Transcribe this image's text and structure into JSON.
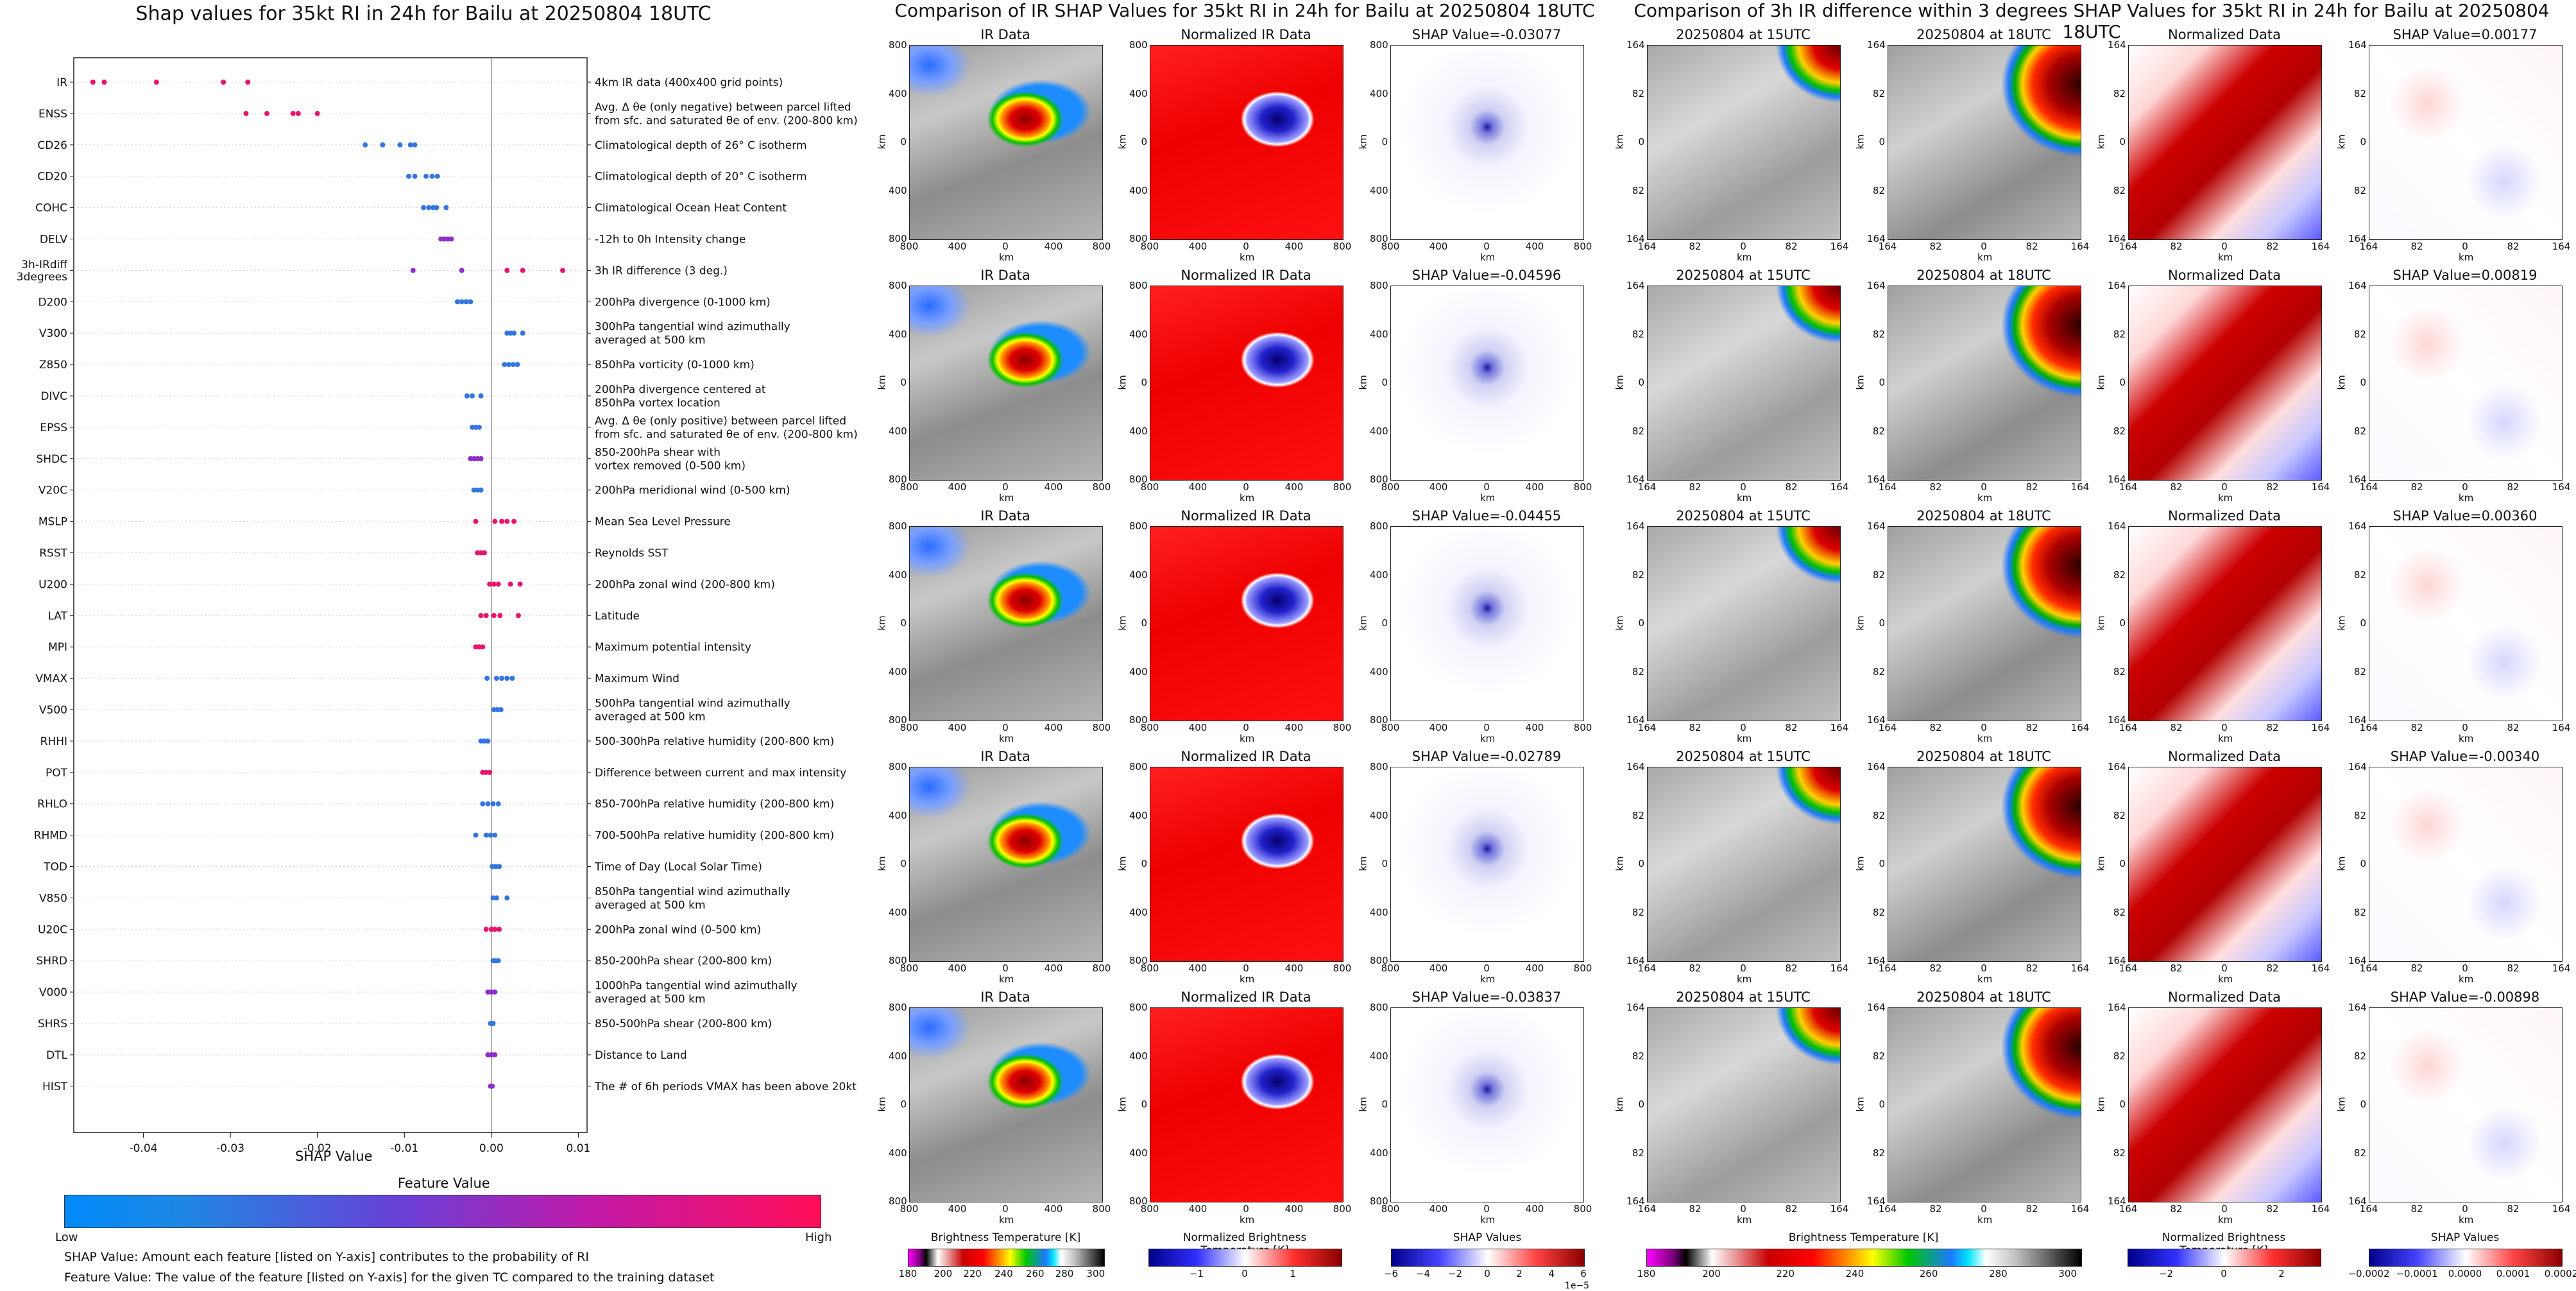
{
  "shap_panel": {
    "title": "Shap values for 35kt RI in 24h for Bailu at 20250804 18UTC",
    "xlabel": "SHAP Value",
    "xticks": [
      "-0.04",
      "-0.03",
      "-0.02",
      "-0.01",
      "0.00",
      "0.01"
    ],
    "colorbar_title": "Feature Value",
    "colorbar_low": "Low",
    "colorbar_high": "High",
    "note1": "SHAP Value: Amount each feature [listed on Y-axis] contributes to the probability of RI",
    "note2": "Feature Value: The value of the feature [listed on Y-axis] for the given TC compared to the training dataset"
  },
  "ir_panel": {
    "title": "Comparison of IR SHAP Values for 35kt RI in 24h for Bailu at 20250804 18UTC",
    "col_ir": "IR Data",
    "col_norm": "Normalized IR Data",
    "shap_titles": [
      "SHAP Value=-0.03077",
      "SHAP Value=-0.04596",
      "SHAP Value=-0.04455",
      "SHAP Value=-0.02789",
      "SHAP Value=-0.03837"
    ],
    "axis_label": "km",
    "ticks": [
      "800",
      "400",
      "0",
      "400",
      "800"
    ],
    "cb1_label": "Brightness Temperature [K]",
    "cb1_ticks": [
      "180",
      "200",
      "220",
      "240",
      "260",
      "280",
      "300"
    ],
    "cb2_label": "Normalized Brightness Temperature [K]",
    "cb2_ticks": [
      "−1",
      "0",
      "1"
    ],
    "cb3_label": "SHAP Values",
    "cb3_ticks": [
      "−6",
      "−4",
      "−2",
      "0",
      "2",
      "4",
      "6"
    ],
    "cb3_exp": "1e−5"
  },
  "diff_panel": {
    "title": "Comparison of 3h IR difference within 3 degrees SHAP Values for 35kt RI in 24h for Bailu at 20250804 18UTC",
    "col_t1": "20250804 at 15UTC",
    "col_t2": "20250804 at 18UTC",
    "col_norm": "Normalized Data",
    "shap_titles": [
      "SHAP Value=0.00177",
      "SHAP Value=0.00819",
      "SHAP Value=0.00360",
      "SHAP Value=-0.00340",
      "SHAP Value=-0.00898"
    ],
    "axis_label": "km",
    "ticks": [
      "164",
      "82",
      "0",
      "82",
      "164"
    ],
    "cb1_label": "Brightness Temperature [K]",
    "cb1_ticks": [
      "180",
      "200",
      "220",
      "240",
      "260",
      "280",
      "300"
    ],
    "cb2_label": "Normalized Brightness Temperature [K]",
    "cb2_ticks": [
      "−2",
      "0",
      "2"
    ],
    "cb3_label": "SHAP Values",
    "cb3_ticks": [
      "−0.0002",
      "−0.0001",
      "0.0000",
      "0.0001",
      "0.0002"
    ]
  },
  "colors": {
    "feature_low": "#1E88E5",
    "feature_high": "#FF0D57",
    "shap_neg": "#1a1aff",
    "shap_pos": "#ff1a1a"
  },
  "chart_data": {
    "type": "scatter",
    "title": "Shap values for 35kt RI in 24h for Bailu at 20250804 18UTC",
    "xlabel": "SHAP Value",
    "xlim": [
      -0.048,
      0.011
    ],
    "features": [
      {
        "name": "IR",
        "desc": "4km IR data (400x400 grid points)",
        "points": [
          [
            -0.0458,
            0.9
          ],
          [
            -0.0445,
            0.9
          ],
          [
            -0.0385,
            0.9
          ],
          [
            -0.0308,
            0.9
          ],
          [
            -0.028,
            0.9
          ]
        ]
      },
      {
        "name": "ENSS",
        "desc": "Avg. Δ θe (only negative) between parcel lifted\nfrom sfc. and saturated θe of env. (200-800 km)",
        "points": [
          [
            -0.0282,
            0.9
          ],
          [
            -0.0258,
            0.9
          ],
          [
            -0.0228,
            0.9
          ],
          [
            -0.0222,
            0.9
          ],
          [
            -0.02,
            0.9
          ]
        ]
      },
      {
        "name": "CD26",
        "desc": "Climatological depth of 26° C isotherm",
        "points": [
          [
            -0.0145,
            0.1
          ],
          [
            -0.0125,
            0.1
          ],
          [
            -0.0105,
            0.1
          ],
          [
            -0.0093,
            0.1
          ],
          [
            -0.0088,
            0.1
          ]
        ]
      },
      {
        "name": "CD20",
        "desc": "Climatological depth of 20° C isotherm",
        "points": [
          [
            -0.0095,
            0.1
          ],
          [
            -0.0088,
            0.1
          ],
          [
            -0.0075,
            0.1
          ],
          [
            -0.0068,
            0.1
          ],
          [
            -0.0062,
            0.1
          ]
        ]
      },
      {
        "name": "COHC",
        "desc": "Climatological Ocean Heat Content",
        "points": [
          [
            -0.0078,
            0.1
          ],
          [
            -0.0072,
            0.1
          ],
          [
            -0.0067,
            0.1
          ],
          [
            -0.0063,
            0.1
          ],
          [
            -0.0052,
            0.1
          ]
        ]
      },
      {
        "name": "DELV",
        "desc": "-12h to 0h Intensity change",
        "points": [
          [
            -0.0058,
            0.5
          ],
          [
            -0.0054,
            0.5
          ],
          [
            -0.005,
            0.5
          ],
          [
            -0.0046,
            0.5
          ]
        ]
      },
      {
        "name": "3h-IRdiff\n3degrees",
        "desc": "3h IR difference (3 deg.)",
        "points": [
          [
            -0.009,
            0.5
          ],
          [
            -0.0034,
            0.5
          ],
          [
            0.0018,
            0.9
          ],
          [
            0.0036,
            0.9
          ],
          [
            0.0082,
            0.9
          ]
        ]
      },
      {
        "name": "D200",
        "desc": "200hPa divergence (0-1000 km)",
        "points": [
          [
            -0.0039,
            0.1
          ],
          [
            -0.0034,
            0.1
          ],
          [
            -0.0029,
            0.1
          ],
          [
            -0.0024,
            0.1
          ]
        ]
      },
      {
        "name": "V300",
        "desc": "300hPa tangential wind azimuthally\naveraged at 500 km",
        "points": [
          [
            0.0018,
            0.1
          ],
          [
            0.0022,
            0.1
          ],
          [
            0.0026,
            0.1
          ],
          [
            0.0036,
            0.1
          ]
        ]
      },
      {
        "name": "Z850",
        "desc": "850hPa vorticity (0-1000 km)",
        "points": [
          [
            0.0015,
            0.1
          ],
          [
            0.002,
            0.1
          ],
          [
            0.0025,
            0.1
          ],
          [
            0.003,
            0.1
          ]
        ]
      },
      {
        "name": "DIVC",
        "desc": "200hPa divergence centered at\n850hPa vortex location",
        "points": [
          [
            -0.0028,
            0.1
          ],
          [
            -0.0022,
            0.1
          ],
          [
            -0.0012,
            0.1
          ]
        ]
      },
      {
        "name": "EPSS",
        "desc": "Avg. Δ θe (only positive) between parcel lifted\nfrom sfc. and saturated θe of env. (200-800 km)",
        "points": [
          [
            -0.0022,
            0.1
          ],
          [
            -0.0018,
            0.1
          ],
          [
            -0.0014,
            0.1
          ]
        ]
      },
      {
        "name": "SHDC",
        "desc": "850-200hPa shear with\nvortex removed (0-500 km)",
        "points": [
          [
            -0.0024,
            0.5
          ],
          [
            -0.002,
            0.5
          ],
          [
            -0.0016,
            0.5
          ],
          [
            -0.0012,
            0.5
          ]
        ]
      },
      {
        "name": "V20C",
        "desc": "200hPa meridional wind (0-500 km)",
        "points": [
          [
            -0.002,
            0.1
          ],
          [
            -0.0016,
            0.1
          ],
          [
            -0.0012,
            0.1
          ]
        ]
      },
      {
        "name": "MSLP",
        "desc": "Mean Sea Level Pressure",
        "points": [
          [
            -0.0018,
            0.9
          ],
          [
            0.0004,
            0.9
          ],
          [
            0.0012,
            0.9
          ],
          [
            0.0018,
            0.9
          ],
          [
            0.0026,
            0.9
          ]
        ]
      },
      {
        "name": "RSST",
        "desc": "Reynolds SST",
        "points": [
          [
            -0.0016,
            0.9
          ],
          [
            -0.0012,
            0.9
          ],
          [
            -0.0008,
            0.9
          ]
        ]
      },
      {
        "name": "U200",
        "desc": "200hPa zonal wind (200-800 km)",
        "points": [
          [
            -0.0002,
            0.9
          ],
          [
            0.0003,
            0.9
          ],
          [
            0.0008,
            0.9
          ],
          [
            0.0022,
            0.9
          ],
          [
            0.0033,
            0.9
          ]
        ]
      },
      {
        "name": "LAT",
        "desc": "Latitude",
        "points": [
          [
            -0.0012,
            0.9
          ],
          [
            -0.0006,
            0.9
          ],
          [
            0.0003,
            0.9
          ],
          [
            0.001,
            0.9
          ],
          [
            0.0031,
            0.9
          ]
        ]
      },
      {
        "name": "MPI",
        "desc": "Maximum potential intensity",
        "points": [
          [
            -0.0018,
            0.9
          ],
          [
            -0.0014,
            0.9
          ],
          [
            -0.001,
            0.9
          ]
        ]
      },
      {
        "name": "VMAX",
        "desc": "Maximum Wind",
        "points": [
          [
            -0.0005,
            0.1
          ],
          [
            0.0006,
            0.1
          ],
          [
            0.0012,
            0.1
          ],
          [
            0.0018,
            0.1
          ],
          [
            0.0024,
            0.1
          ]
        ]
      },
      {
        "name": "V500",
        "desc": "500hPa tangential wind azimuthally\naveraged at 500 km",
        "points": [
          [
            0.0003,
            0.1
          ],
          [
            0.0007,
            0.1
          ],
          [
            0.0011,
            0.1
          ]
        ]
      },
      {
        "name": "RHHI",
        "desc": "500-300hPa relative humidity (200-800 km)",
        "points": [
          [
            -0.0012,
            0.1
          ],
          [
            -0.0008,
            0.1
          ],
          [
            -0.0004,
            0.1
          ]
        ]
      },
      {
        "name": "POT",
        "desc": "Difference between current and max intensity",
        "points": [
          [
            -0.001,
            0.9
          ],
          [
            -0.0006,
            0.9
          ],
          [
            -0.0002,
            0.9
          ]
        ]
      },
      {
        "name": "RHLO",
        "desc": "850-700hPa relative humidity (200-800 km)",
        "points": [
          [
            -0.001,
            0.1
          ],
          [
            -0.0004,
            0.1
          ],
          [
            0.0002,
            0.1
          ],
          [
            0.0008,
            0.1
          ]
        ]
      },
      {
        "name": "RHMD",
        "desc": "700-500hPa relative humidity (200-800 km)",
        "points": [
          [
            -0.0018,
            0.1
          ],
          [
            -0.0006,
            0.1
          ],
          [
            -0.0001,
            0.1
          ],
          [
            0.0004,
            0.1
          ]
        ]
      },
      {
        "name": "TOD",
        "desc": "Time of Day (Local Solar Time)",
        "points": [
          [
            0.0001,
            0.1
          ],
          [
            0.0005,
            0.1
          ],
          [
            0.0009,
            0.1
          ]
        ]
      },
      {
        "name": "V850",
        "desc": "850hPa tangential wind azimuthally\naveraged at 500 km",
        "points": [
          [
            0.0002,
            0.1
          ],
          [
            0.0006,
            0.1
          ],
          [
            0.0018,
            0.1
          ]
        ]
      },
      {
        "name": "U20C",
        "desc": "200hPa zonal wind (0-500 km)",
        "points": [
          [
            -0.0006,
            0.9
          ],
          [
            0.0,
            0.9
          ],
          [
            0.0004,
            0.9
          ],
          [
            0.0009,
            0.9
          ]
        ]
      },
      {
        "name": "SHRD",
        "desc": "850-200hPa shear (200-800 km)",
        "points": [
          [
            0.0002,
            0.1
          ],
          [
            0.0005,
            0.1
          ],
          [
            0.0008,
            0.1
          ]
        ]
      },
      {
        "name": "V000",
        "desc": "1000hPa tangential wind azimuthally\naveraged at 500 km",
        "points": [
          [
            -0.0004,
            0.5
          ],
          [
            0.0,
            0.5
          ],
          [
            0.0004,
            0.5
          ]
        ]
      },
      {
        "name": "SHRS",
        "desc": "850-500hPa shear (200-800 km)",
        "points": [
          [
            -0.0001,
            0.1
          ],
          [
            0.0002,
            0.1
          ]
        ]
      },
      {
        "name": "DTL",
        "desc": "Distance to Land",
        "points": [
          [
            -0.0004,
            0.5
          ],
          [
            0.0,
            0.5
          ],
          [
            0.0004,
            0.5
          ]
        ]
      },
      {
        "name": "HIST",
        "desc": "The # of 6h periods VMAX has been above 20kt",
        "points": [
          [
            -0.0001,
            0.5
          ],
          [
            0.0001,
            0.5
          ]
        ]
      }
    ]
  }
}
